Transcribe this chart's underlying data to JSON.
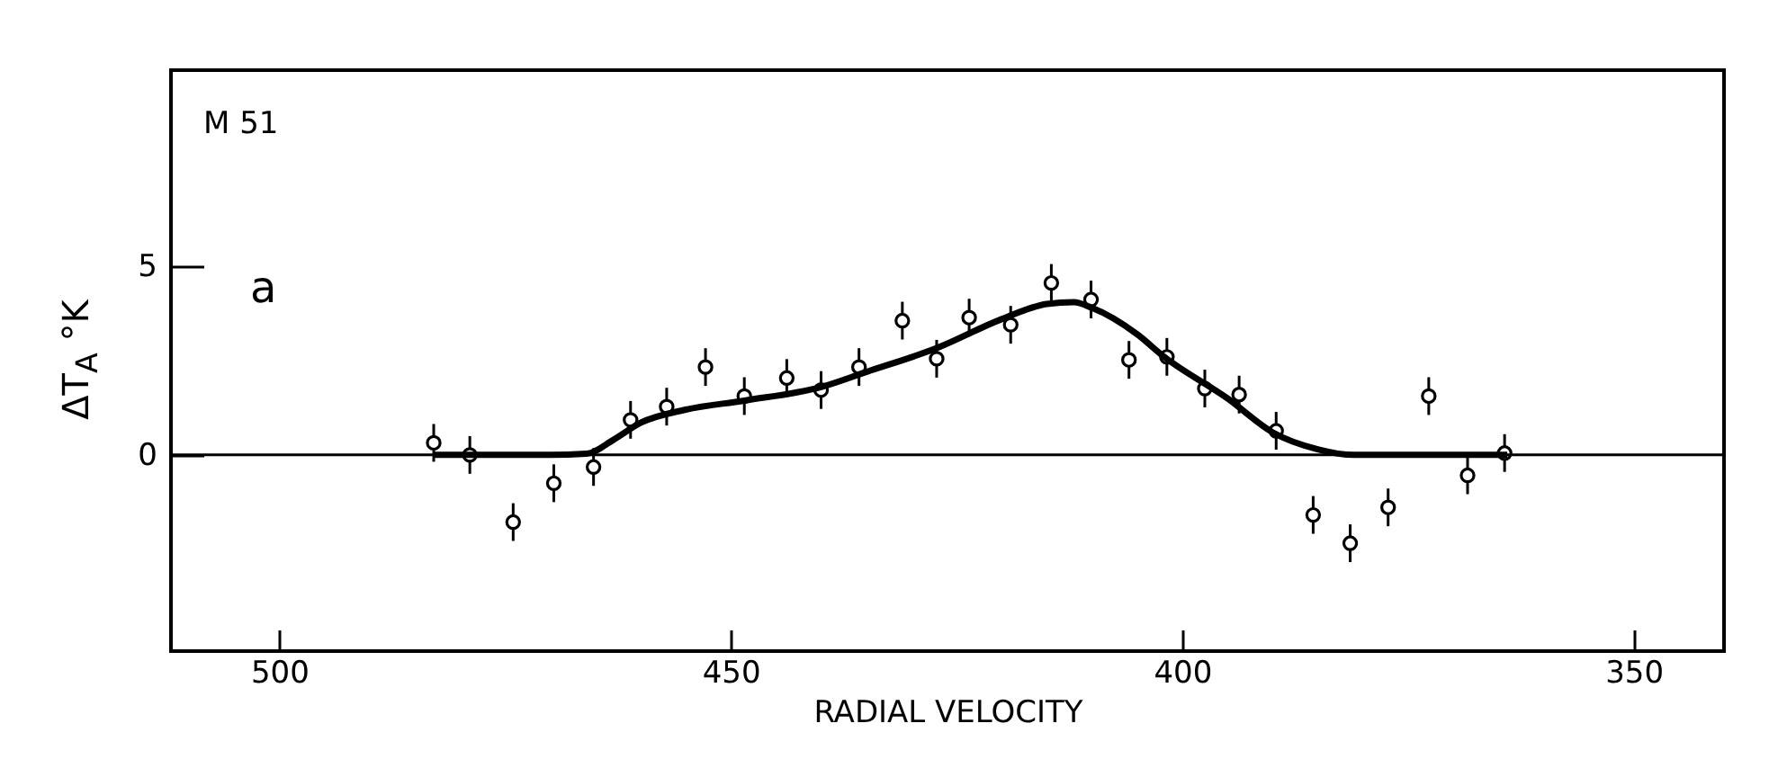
{
  "chart_data": {
    "type": "scatter",
    "xlabel": "RADIAL VELOCITY",
    "ylabel": "ΔT$_{A}$ °K",
    "annotations": [
      "M 51",
      "a"
    ],
    "xlim": [
      512,
      340
    ],
    "ylim": [
      -5.2,
      10.2
    ],
    "xticks": [
      500,
      450,
      400,
      350
    ],
    "yticks": [
      0,
      5
    ],
    "grid": false,
    "ref_lines": [
      {
        "axis": "y",
        "value": 0,
        "color": "#000000"
      }
    ],
    "series": [
      {
        "marker": "circle",
        "color": "#000000",
        "x": [
          482.9,
          478.9,
          474.1,
          469.6,
          465.2,
          461.1,
          457.1,
          452.8,
          448.5,
          443.8,
          440.0,
          435.8,
          431.0,
          427.2,
          423.6,
          419.0,
          414.5,
          410.1,
          405.9,
          401.7,
          397.5,
          393.7,
          389.6,
          385.5,
          381.4,
          377.2,
          372.7,
          368.4,
          364.3
        ],
        "values": [
          0.32,
          0,
          -1.78,
          -0.75,
          -0.32,
          0.93,
          1.28,
          2.33,
          1.56,
          2.04,
          1.72,
          2.33,
          3.56,
          2.55,
          3.64,
          3.45,
          4.56,
          4.12,
          2.52,
          2.6,
          1.76,
          1.6,
          0.64,
          -1.59,
          -2.34,
          -1.39,
          1.56,
          -0.54,
          0.05
        ],
        "errors": [
          0.5,
          0.5,
          0.5,
          0.5,
          0.5,
          0.5,
          0.5,
          0.5,
          0.5,
          0.5,
          0.5,
          0.5,
          0.5,
          0.5,
          0.5,
          0.5,
          0.5,
          0.5,
          0.5,
          0.5,
          0.5,
          0.5,
          0.5,
          0.5,
          0.5,
          0.5,
          0.5,
          0.5,
          0.5
        ]
      },
      {
        "type": "line",
        "marker": "none",
        "color": "#000000",
        "x": [
          483,
          470,
          466,
          463,
          460,
          455,
          448.5,
          440,
          435,
          427,
          420,
          415,
          412,
          410,
          405,
          402,
          395,
          390,
          385,
          381,
          375,
          364
        ],
        "values": [
          0,
          0,
          0.03,
          0.4,
          0.85,
          1.2,
          1.44,
          1.8,
          2.2,
          2.85,
          3.6,
          4.0,
          4.05,
          3.9,
          3.2,
          2.6,
          1.5,
          0.6,
          0.15,
          0,
          0,
          0
        ]
      }
    ]
  }
}
